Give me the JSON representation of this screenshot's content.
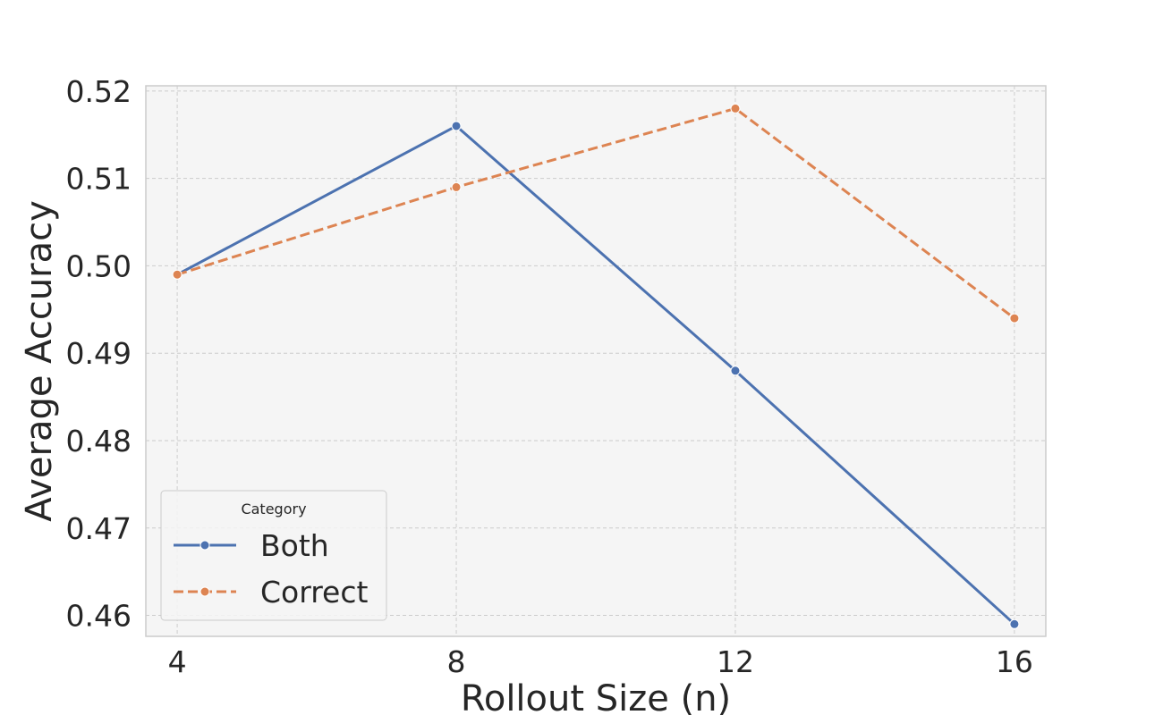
{
  "chart_data": {
    "type": "line",
    "title": "",
    "xlabel": "Rollout Size (n)",
    "ylabel": "Average Accuracy",
    "x": [
      4,
      8,
      12,
      16
    ],
    "x_tick_labels": [
      "4",
      "8",
      "12",
      "16"
    ],
    "y_tick_values": [
      0.46,
      0.47,
      0.48,
      0.49,
      0.5,
      0.51,
      0.52
    ],
    "y_tick_labels": [
      "0.46",
      "0.47",
      "0.48",
      "0.49",
      "0.50",
      "0.51",
      "0.52"
    ],
    "xlim": [
      3.55,
      16.45
    ],
    "ylim": [
      0.4576,
      0.5206
    ],
    "grid": true,
    "background": "#f5f5f5",
    "legend": {
      "title": "Category",
      "placement": "lower-left"
    },
    "series": [
      {
        "name": "Both",
        "values": [
          0.499,
          0.516,
          0.488,
          0.459
        ],
        "color": "#4c72b0",
        "line_style": "solid",
        "marker": "circle"
      },
      {
        "name": "Correct",
        "values": [
          0.499,
          0.509,
          0.518,
          0.494
        ],
        "color": "#dd8452",
        "line_style": "dashed",
        "marker": "circle"
      }
    ]
  }
}
